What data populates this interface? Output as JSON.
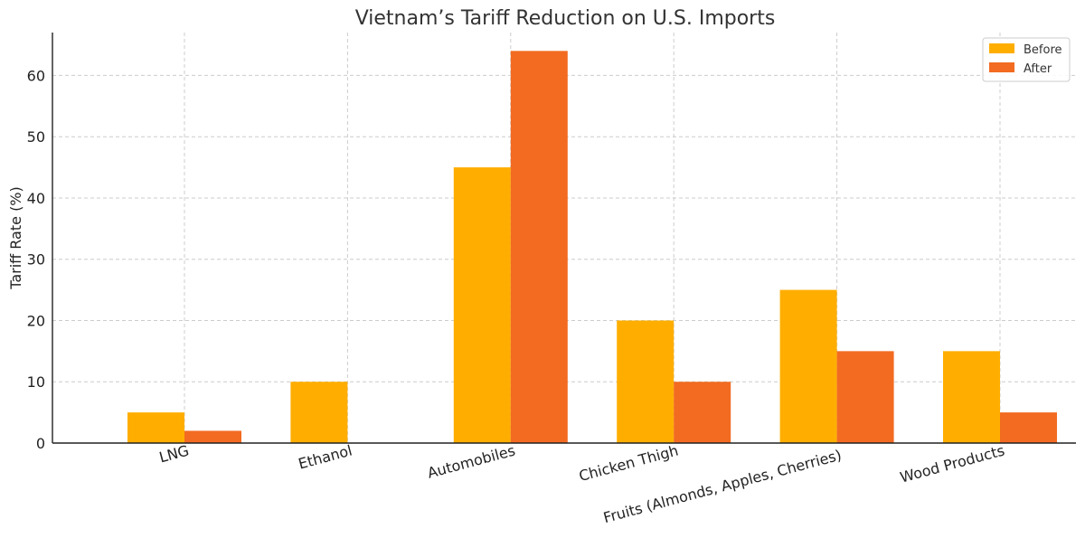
{
  "chart_data": {
    "type": "bar",
    "title": "Vietnam’s Tariff Reduction on U.S. Imports",
    "xlabel": "",
    "ylabel": "Tariff Rate (%)",
    "categories": [
      "LNG",
      "Ethanol",
      "Automobiles",
      "Chicken Thigh",
      "Fruits (Almonds, Apples, Cherries)",
      "Wood Products"
    ],
    "series": [
      {
        "name": "Before",
        "values": [
          5,
          10,
          45,
          20,
          25,
          15
        ],
        "color": "#FFAE00"
      },
      {
        "name": "After",
        "values": [
          2,
          0,
          64,
          10,
          15,
          5
        ],
        "color": "#F26B21"
      }
    ],
    "ylim": [
      0,
      67
    ],
    "yticks": [
      0,
      10,
      20,
      30,
      40,
      50,
      60
    ],
    "grid": true,
    "legend_position": "top-right"
  }
}
